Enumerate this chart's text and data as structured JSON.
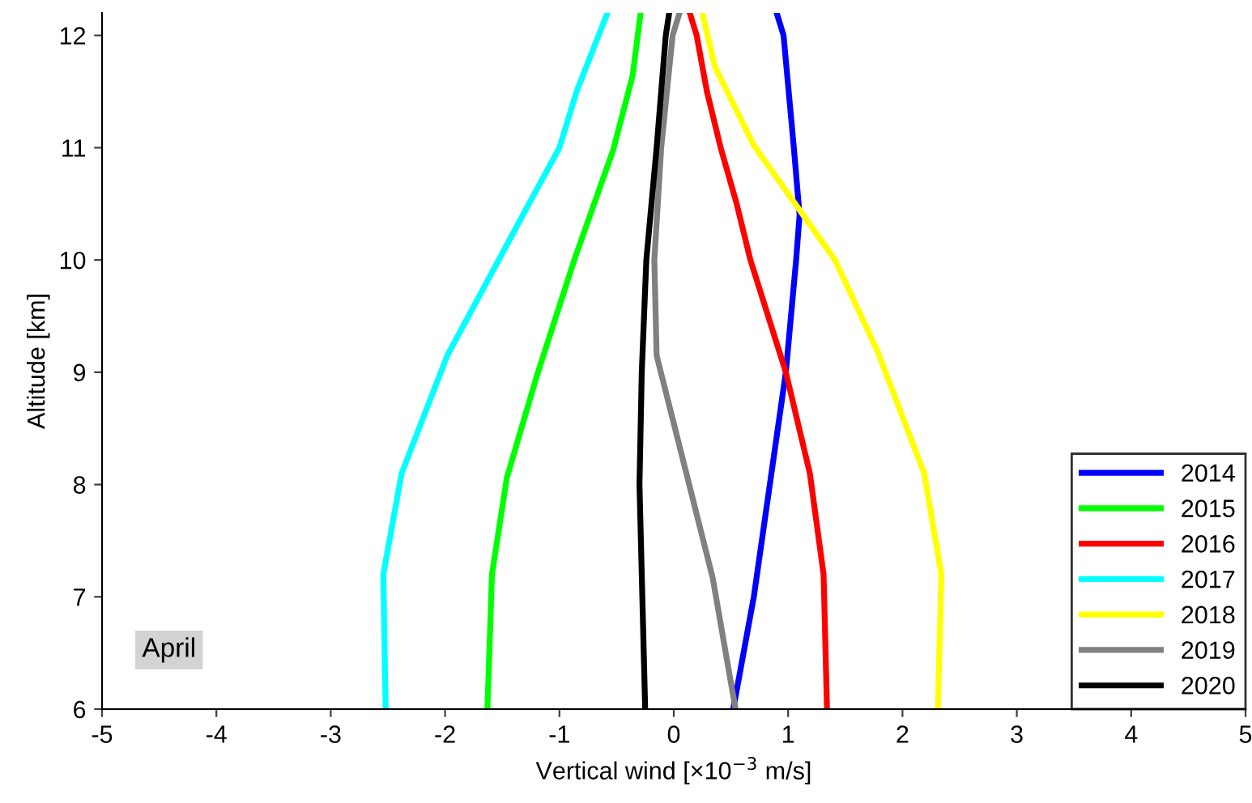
{
  "chart_data": {
    "type": "line",
    "xlabel": "Vertical wind [×10$^{−3}$ m/s]",
    "ylabel": "Altitude [km]",
    "xlim": [
      -5,
      5
    ],
    "xticks": [
      -5,
      -4,
      -3,
      -2,
      -1,
      0,
      1,
      2,
      3,
      4,
      5
    ],
    "ylim": [
      6,
      12.2
    ],
    "yticks": [
      6,
      7,
      8,
      9,
      10,
      11,
      12
    ],
    "grid": false,
    "legend": "bottom right",
    "marker": "none",
    "line_style": "solid",
    "annotations": [
      "April"
    ],
    "series": [
      {
        "name": "2014",
        "color": "#0000ff",
        "x": [
          0.52,
          0.7,
          0.84,
          0.98,
          1.07,
          1.1,
          1.05,
          0.96,
          0.9
        ],
        "values": [
          6,
          7,
          8,
          9,
          10,
          10.4,
          11,
          12,
          12.2
        ]
      },
      {
        "name": "2015",
        "color": "#00ff00",
        "x": [
          -1.63,
          -1.59,
          -1.46,
          -1.2,
          -0.87,
          -0.53,
          -0.36,
          -0.29
        ],
        "values": [
          6,
          7.2,
          8.06,
          8.96,
          10,
          10.98,
          11.64,
          12.2
        ]
      },
      {
        "name": "2016",
        "color": "#ff0000",
        "x": [
          1.34,
          1.31,
          1.19,
          0.98,
          0.67,
          0.55,
          0.41,
          0.29,
          0.2,
          0.14
        ],
        "values": [
          6,
          7.2,
          8.1,
          9,
          10,
          10.5,
          11,
          11.5,
          12,
          12.2
        ]
      },
      {
        "name": "2017",
        "color": "#00ffff",
        "x": [
          -2.52,
          -2.54,
          -2.38,
          -1.98,
          -1.32,
          -1.0,
          -0.85,
          -0.58
        ],
        "values": [
          6,
          7.2,
          8.1,
          9.15,
          10.4,
          11,
          11.5,
          12.2
        ]
      },
      {
        "name": "2018",
        "color": "#ffff00",
        "x": [
          2.31,
          2.34,
          2.19,
          1.78,
          1.41,
          0.7,
          0.36,
          0.25
        ],
        "values": [
          6,
          7.2,
          8.1,
          9.19,
          10,
          11.02,
          11.72,
          12.2
        ]
      },
      {
        "name": "2019",
        "color": "#808080",
        "x": [
          0.54,
          0.34,
          0.1,
          -0.15,
          -0.17,
          -0.11,
          -0.01,
          0.05
        ],
        "values": [
          6,
          7.17,
          8.14,
          9.15,
          10,
          11,
          12,
          12.2
        ]
      },
      {
        "name": "2020",
        "color": "#000000",
        "x": [
          -0.25,
          -0.3,
          -0.28,
          -0.24,
          -0.15,
          -0.07,
          -0.04
        ],
        "values": [
          6,
          8,
          9,
          10,
          11,
          12,
          12.2
        ]
      }
    ]
  }
}
